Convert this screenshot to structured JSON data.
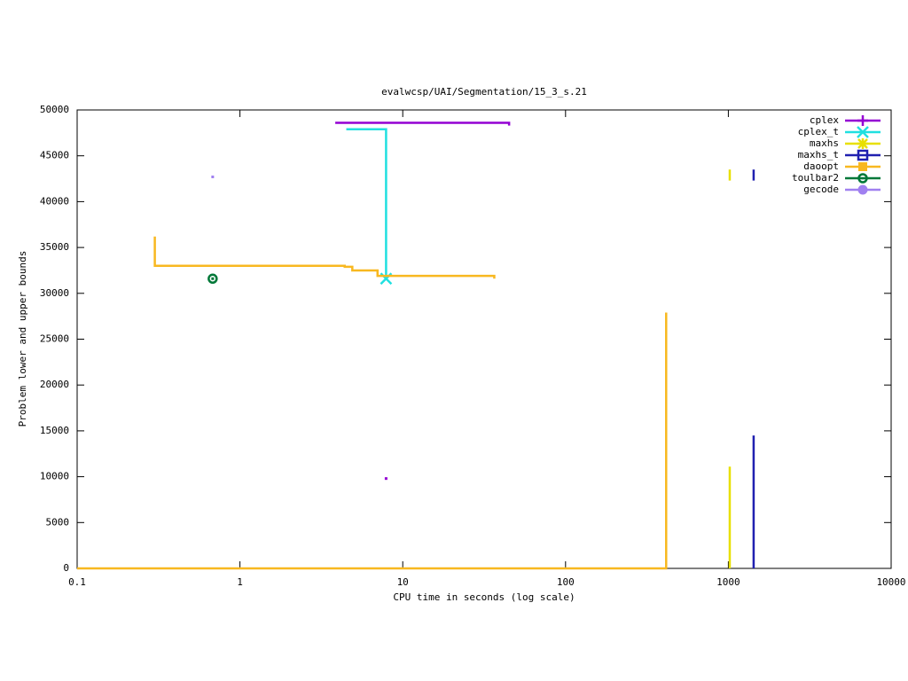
{
  "chart_data": {
    "type": "line",
    "title": "evalwcsp/UAI/Segmentation/15_3_s.21",
    "x_label": "CPU time in seconds (log scale)",
    "y_label": "Problem lower and upper bounds",
    "x_scale": "log",
    "xlim": [
      0.1,
      10000
    ],
    "xticks": [
      0.1,
      1,
      10,
      100,
      1000,
      10000
    ],
    "ylim": [
      0,
      50000
    ],
    "yticks": [
      0,
      5000,
      10000,
      15000,
      20000,
      25000,
      30000,
      35000,
      40000,
      45000,
      50000
    ],
    "legend": "top-right",
    "series": [
      {
        "name": "cplex",
        "color": "#9400d3",
        "marker": "plus",
        "x": [
          3.85,
          45,
          45,
          null,
          7.9
        ],
        "values": [
          48600,
          48600,
          48300,
          null,
          9800
        ]
      },
      {
        "name": "cplex_t",
        "color": "#20e0e0",
        "marker": "cross",
        "x": [
          4.5,
          7.9,
          7.9
        ],
        "values": [
          47900,
          47900,
          31600
        ]
      },
      {
        "name": "maxhs",
        "color": "#e8e000",
        "marker": "star",
        "x": [
          1020,
          1020,
          null,
          1020,
          1020
        ],
        "values": [
          43500,
          42300,
          null,
          0,
          11100
        ]
      },
      {
        "name": "maxhs_t",
        "color": "#2020b0",
        "marker": "open-square",
        "x": [
          1430,
          1430,
          null,
          1430,
          1430
        ],
        "values": [
          43500,
          42300,
          null,
          0,
          14500
        ]
      },
      {
        "name": "daoopt",
        "color": "#f8b820",
        "marker": "filled-square",
        "x": [
          0.3,
          0.3,
          4.4,
          4.4,
          4.9,
          4.9,
          7.0,
          7.0,
          36.5,
          36.5,
          null,
          0.1,
          415,
          415
        ],
        "values": [
          36200,
          33000,
          33000,
          32900,
          32900,
          32500,
          32500,
          31900,
          31900,
          31600,
          null,
          0,
          0,
          27900
        ]
      },
      {
        "name": "toulbar2",
        "color": "#007838",
        "marker": "dot-circle",
        "x": [
          0.68
        ],
        "values": [
          31600
        ]
      },
      {
        "name": "gecode",
        "color": "#a080f0",
        "marker": "filled-circle",
        "x": [
          0.68
        ],
        "values": [
          42700
        ]
      }
    ]
  }
}
